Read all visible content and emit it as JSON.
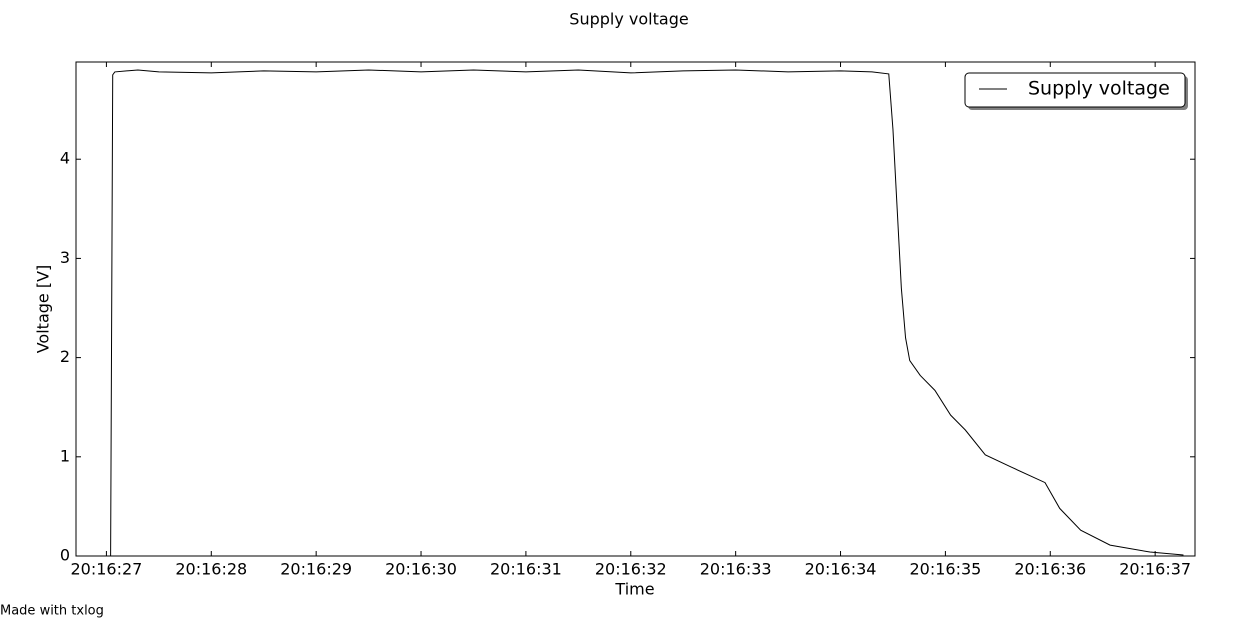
{
  "chart_data": {
    "type": "line",
    "title": "Supply voltage",
    "x_label": "Time",
    "y_label": "Voltage [V]",
    "x": [
      72987.04,
      72987.06,
      72987.08,
      72987.3,
      72987.5,
      72988.0,
      72988.5,
      72989.0,
      72989.5,
      72990.0,
      72990.5,
      72991.0,
      72991.5,
      72992.0,
      72992.5,
      72993.0,
      72993.5,
      72994.0,
      72994.3,
      72994.46,
      72994.5,
      72994.54,
      72994.58,
      72994.62,
      72994.66,
      72994.76,
      72994.9,
      72995.05,
      72995.19,
      72995.38,
      72995.62,
      72995.95,
      72996.09,
      72996.29,
      72996.57,
      72996.95,
      72997.27
    ],
    "series": [
      {
        "name": "Supply voltage",
        "color": "#000000",
        "values": [
          0,
          4.85,
          4.88,
          4.9,
          4.88,
          4.87,
          4.89,
          4.88,
          4.9,
          4.88,
          4.9,
          4.88,
          4.9,
          4.87,
          4.89,
          4.9,
          4.88,
          4.89,
          4.88,
          4.86,
          4.3,
          3.5,
          2.7,
          2.2,
          1.97,
          1.82,
          1.67,
          1.42,
          1.27,
          1.02,
          0.9,
          0.74,
          0.48,
          0.26,
          0.11,
          0.04,
          0.01
        ]
      }
    ],
    "xlim": [
      72986.71,
      72997.38
    ],
    "ylim": [
      0,
      4.98
    ],
    "xticks": [
      {
        "value": 72987,
        "label": "20:16:27"
      },
      {
        "value": 72988,
        "label": "20:16:28"
      },
      {
        "value": 72989,
        "label": "20:16:29"
      },
      {
        "value": 72990,
        "label": "20:16:30"
      },
      {
        "value": 72991,
        "label": "20:16:31"
      },
      {
        "value": 72992,
        "label": "20:16:32"
      },
      {
        "value": 72993,
        "label": "20:16:33"
      },
      {
        "value": 72994,
        "label": "20:16:34"
      },
      {
        "value": 72995,
        "label": "20:16:35"
      },
      {
        "value": 72996,
        "label": "20:16:36"
      },
      {
        "value": 72997,
        "label": "20:16:37"
      }
    ],
    "yticks": [
      0,
      1,
      2,
      3,
      4
    ],
    "grid": false,
    "legend": "upper right"
  },
  "footer": "Made with txlog"
}
